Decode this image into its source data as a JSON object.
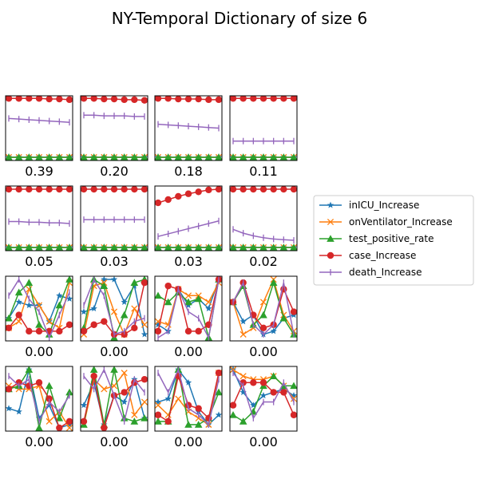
{
  "chart_data": {
    "type": "line",
    "title": "NY-Temporal Dictionary of size 6",
    "grid": false,
    "legend_position": "right",
    "x": [
      0,
      1,
      2,
      3,
      4,
      5,
      6
    ],
    "series": [
      {
        "name": "inICU_Increase",
        "color": "#1f77b4",
        "marker": "star"
      },
      {
        "name": "onVentilator_Increase",
        "color": "#ff7f0e",
        "marker": "x"
      },
      {
        "name": "test_positive_rate",
        "color": "#2ca02c",
        "marker": "triangle"
      },
      {
        "name": "case_Increase",
        "color": "#d62728",
        "marker": "circle"
      },
      {
        "name": "death_Increase",
        "color": "#9467bd",
        "marker": "vline"
      }
    ],
    "panels": [
      {
        "label": "0.39",
        "ylim": [
          0,
          1
        ],
        "values": [
          [
            0.05,
            0.05,
            0.05,
            0.05,
            0.05,
            0.05,
            0.05
          ],
          [
            0.05,
            0.05,
            0.05,
            0.05,
            0.05,
            0.05,
            0.05
          ],
          [
            0.05,
            0.05,
            0.05,
            0.05,
            0.05,
            0.05,
            0.05
          ],
          [
            0.96,
            0.96,
            0.96,
            0.96,
            0.95,
            0.95,
            0.94
          ],
          [
            0.65,
            0.64,
            0.63,
            0.62,
            0.61,
            0.6,
            0.59
          ]
        ]
      },
      {
        "label": "0.20",
        "ylim": [
          0,
          1
        ],
        "values": [
          [
            0.05,
            0.05,
            0.05,
            0.05,
            0.05,
            0.05,
            0.05
          ],
          [
            0.05,
            0.05,
            0.05,
            0.05,
            0.05,
            0.05,
            0.05
          ],
          [
            0.05,
            0.05,
            0.05,
            0.05,
            0.05,
            0.05,
            0.05
          ],
          [
            0.96,
            0.96,
            0.95,
            0.95,
            0.94,
            0.94,
            0.93
          ],
          [
            0.7,
            0.7,
            0.69,
            0.69,
            0.69,
            0.68,
            0.68
          ]
        ]
      },
      {
        "label": "0.18",
        "ylim": [
          0,
          1
        ],
        "values": [
          [
            0.05,
            0.05,
            0.05,
            0.05,
            0.05,
            0.05,
            0.05
          ],
          [
            0.05,
            0.05,
            0.05,
            0.05,
            0.05,
            0.05,
            0.05
          ],
          [
            0.05,
            0.05,
            0.05,
            0.05,
            0.05,
            0.05,
            0.05
          ],
          [
            0.96,
            0.96,
            0.95,
            0.95,
            0.95,
            0.94,
            0.94
          ],
          [
            0.56,
            0.55,
            0.54,
            0.53,
            0.52,
            0.51,
            0.5
          ]
        ]
      },
      {
        "label": "0.11",
        "ylim": [
          0,
          1
        ],
        "values": [
          [
            0.05,
            0.05,
            0.05,
            0.05,
            0.05,
            0.05,
            0.05
          ],
          [
            0.05,
            0.05,
            0.05,
            0.05,
            0.05,
            0.05,
            0.05
          ],
          [
            0.05,
            0.05,
            0.05,
            0.05,
            0.05,
            0.05,
            0.05
          ],
          [
            0.96,
            0.96,
            0.96,
            0.96,
            0.96,
            0.96,
            0.96
          ],
          [
            0.3,
            0.3,
            0.3,
            0.3,
            0.3,
            0.3,
            0.3
          ]
        ]
      },
      {
        "label": "0.05",
        "ylim": [
          0,
          1
        ],
        "values": [
          [
            0.05,
            0.05,
            0.05,
            0.05,
            0.05,
            0.05,
            0.05
          ],
          [
            0.05,
            0.05,
            0.05,
            0.05,
            0.05,
            0.05,
            0.05
          ],
          [
            0.05,
            0.05,
            0.05,
            0.05,
            0.05,
            0.05,
            0.05
          ],
          [
            0.95,
            0.95,
            0.95,
            0.95,
            0.95,
            0.95,
            0.95
          ],
          [
            0.45,
            0.45,
            0.44,
            0.44,
            0.43,
            0.43,
            0.42
          ]
        ]
      },
      {
        "label": "0.03",
        "ylim": [
          0,
          1
        ],
        "values": [
          [
            0.05,
            0.05,
            0.05,
            0.05,
            0.05,
            0.05,
            0.05
          ],
          [
            0.05,
            0.05,
            0.05,
            0.05,
            0.05,
            0.05,
            0.05
          ],
          [
            0.05,
            0.05,
            0.05,
            0.05,
            0.05,
            0.05,
            0.05
          ],
          [
            0.95,
            0.95,
            0.95,
            0.95,
            0.95,
            0.95,
            0.95
          ],
          [
            0.48,
            0.48,
            0.48,
            0.48,
            0.48,
            0.48,
            0.48
          ]
        ]
      },
      {
        "label": "0.03",
        "ylim": [
          0,
          1
        ],
        "values": [
          [
            0.05,
            0.05,
            0.05,
            0.05,
            0.05,
            0.05,
            0.05
          ],
          [
            0.05,
            0.05,
            0.05,
            0.05,
            0.05,
            0.05,
            0.05
          ],
          [
            0.05,
            0.05,
            0.05,
            0.05,
            0.05,
            0.05,
            0.05
          ],
          [
            0.74,
            0.79,
            0.84,
            0.88,
            0.91,
            0.94,
            0.95
          ],
          [
            0.22,
            0.26,
            0.3,
            0.34,
            0.38,
            0.42,
            0.46
          ]
        ]
      },
      {
        "label": "0.02",
        "ylim": [
          0,
          1
        ],
        "values": [
          [
            0.05,
            0.05,
            0.05,
            0.05,
            0.05,
            0.05,
            0.05
          ],
          [
            0.05,
            0.05,
            0.05,
            0.05,
            0.05,
            0.05,
            0.05
          ],
          [
            0.05,
            0.05,
            0.05,
            0.05,
            0.05,
            0.05,
            0.05
          ],
          [
            0.95,
            0.95,
            0.95,
            0.95,
            0.95,
            0.95,
            0.95
          ],
          [
            0.33,
            0.27,
            0.23,
            0.2,
            0.18,
            0.17,
            0.16
          ]
        ]
      },
      {
        "label": "0.00",
        "ylim": [
          0,
          1
        ],
        "values": [
          [
            0.35,
            0.6,
            0.55,
            0.55,
            0.3,
            0.7,
            0.65
          ],
          [
            0.2,
            0.3,
            0.8,
            0.55,
            0.3,
            0.2,
            0.9
          ],
          [
            0.35,
            0.75,
            0.9,
            0.25,
            0.1,
            0.55,
            0.95
          ],
          [
            0.2,
            0.4,
            0.15,
            0.15,
            0.15,
            0.15,
            0.25
          ],
          [
            0.7,
            0.95,
            0.65,
            0.45,
            0.05,
            0.4,
            0.75
          ]
        ]
      },
      {
        "label": "0.00",
        "ylim": [
          0,
          1
        ],
        "values": [
          [
            0.45,
            0.5,
            0.95,
            0.95,
            0.6,
            0.85,
            0.1
          ],
          [
            0.1,
            0.85,
            0.9,
            0.45,
            0.1,
            0.5,
            0.25
          ],
          [
            0.2,
            0.95,
            0.85,
            0.05,
            0.4,
            0.9,
            0.95
          ],
          [
            0.15,
            0.25,
            0.3,
            0.1,
            0.1,
            0.2,
            0.9
          ],
          [
            0.55,
            0.95,
            0.7,
            0.1,
            0.15,
            0.3,
            0.35
          ]
        ]
      },
      {
        "label": "0.00",
        "ylim": [
          0,
          1
        ],
        "values": [
          [
            0.25,
            0.15,
            0.8,
            0.55,
            0.65,
            0.5,
            0.95
          ],
          [
            0.3,
            0.25,
            0.8,
            0.7,
            0.7,
            0.6,
            0.9
          ],
          [
            0.7,
            0.6,
            0.75,
            0.6,
            0.65,
            0.05,
            0.95
          ],
          [
            0.15,
            0.85,
            0.8,
            0.15,
            0.15,
            0.25,
            0.95
          ],
          [
            0.05,
            0.15,
            0.8,
            0.45,
            0.35,
            0.05,
            0.95
          ]
        ]
      },
      {
        "label": "0.00",
        "ylim": [
          0,
          1
        ],
        "values": [
          [
            0.6,
            0.3,
            0.4,
            0.1,
            0.15,
            0.35,
            0.4
          ],
          [
            0.6,
            0.1,
            0.2,
            0.6,
            0.95,
            0.4,
            0.15
          ],
          [
            0.6,
            0.85,
            0.25,
            0.4,
            0.9,
            0.35,
            0.1
          ],
          [
            0.6,
            0.9,
            0.4,
            0.2,
            0.25,
            0.8,
            0.45
          ],
          [
            0.6,
            0.9,
            0.25,
            0.1,
            0.25,
            0.9,
            0.1
          ]
        ]
      },
      {
        "label": "0.00",
        "ylim": [
          0,
          1
        ],
        "values": [
          [
            0.35,
            0.3,
            0.95,
            0.2,
            0.4,
            0.05,
            0.1
          ],
          [
            0.7,
            0.65,
            0.65,
            0.7,
            0.15,
            0.3,
            0.05
          ],
          [
            0.65,
            0.7,
            0.95,
            0.05,
            0.7,
            0.2,
            0.6
          ],
          [
            0.65,
            0.75,
            0.7,
            0.75,
            0.5,
            0.05,
            0.15
          ],
          [
            0.85,
            0.7,
            0.8,
            0.15,
            0.45,
            0.3,
            0.55
          ]
        ]
      },
      {
        "label": "0.00",
        "ylim": [
          0,
          1
        ],
        "values": [
          [
            0.4,
            0.75,
            0.1,
            0.55,
            0.45,
            0.8,
            0.2
          ],
          [
            0.1,
            0.8,
            0.65,
            0.7,
            0.9,
            0.25,
            0.45
          ],
          [
            0.1,
            0.95,
            0.1,
            0.95,
            0.2,
            0.15,
            0.2
          ],
          [
            0.15,
            0.85,
            0.05,
            0.55,
            0.6,
            0.75,
            0.8
          ],
          [
            0.85,
            0.65,
            0.95,
            0.55,
            0.15,
            0.8,
            0.6
          ]
        ]
      },
      {
        "label": "0.00",
        "ylim": [
          0,
          1
        ],
        "values": [
          [
            0.45,
            0.5,
            0.95,
            0.75,
            0.3,
            0.1,
            0.25
          ],
          [
            0.4,
            0.25,
            0.5,
            0.3,
            0.2,
            0.1,
            0.9
          ],
          [
            0.15,
            0.15,
            0.95,
            0.1,
            0.1,
            0.2,
            0.6
          ],
          [
            0.25,
            0.15,
            0.85,
            0.4,
            0.35,
            0.2,
            0.9
          ],
          [
            0.9,
            0.6,
            0.95,
            0.35,
            0.25,
            0.1,
            0.8
          ]
        ]
      },
      {
        "label": "0.00",
        "ylim": [
          0,
          1
        ],
        "values": [
          [
            0.95,
            0.6,
            0.4,
            0.55,
            0.6,
            0.65,
            0.55
          ],
          [
            0.95,
            0.85,
            0.8,
            0.8,
            0.85,
            0.7,
            0.5
          ],
          [
            0.25,
            0.15,
            0.3,
            0.7,
            0.85,
            0.7,
            0.7
          ],
          [
            0.4,
            0.75,
            0.75,
            0.75,
            0.6,
            0.6,
            0.25
          ],
          [
            0.9,
            0.7,
            0.2,
            0.45,
            0.45,
            0.75,
            0.45
          ]
        ]
      }
    ]
  }
}
